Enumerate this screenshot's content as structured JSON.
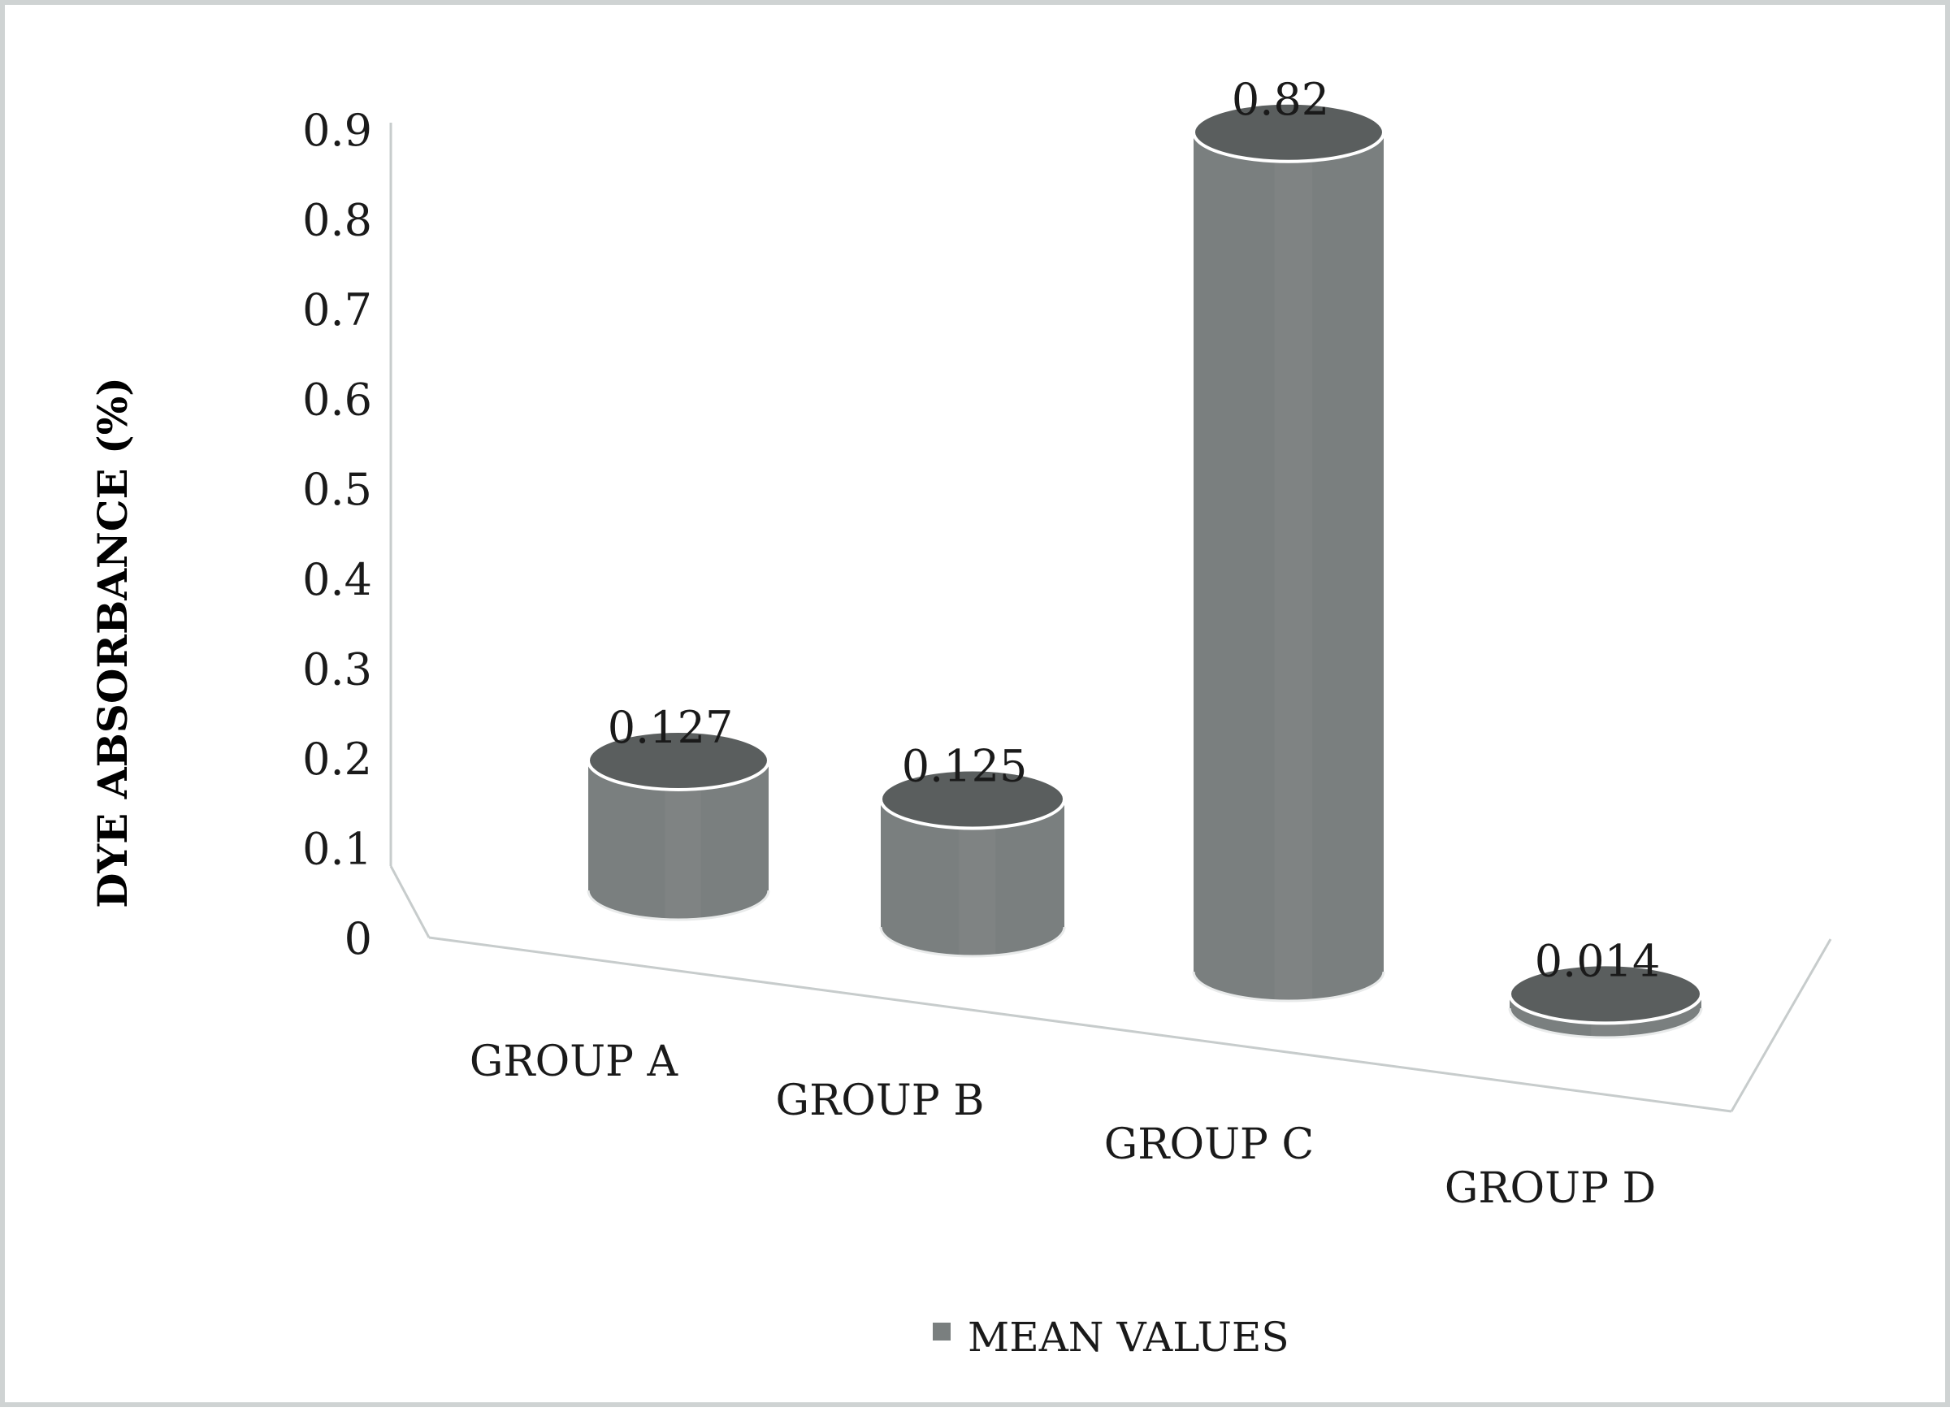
{
  "chart_data": {
    "type": "bar",
    "style": "3d-cylinder",
    "title": "",
    "xlabel": "",
    "ylabel": "DYE ABSORBANCE (%)",
    "categories": [
      "GROUP A",
      "GROUP B",
      "GROUP C",
      "GROUP D"
    ],
    "series": [
      {
        "name": "MEAN VALUES",
        "values": [
          0.127,
          0.125,
          0.82,
          0.014
        ],
        "data_labels": [
          "0.127",
          "0.125",
          "0.82",
          "0.014"
        ],
        "color": "#7a7f7f"
      }
    ],
    "yticks": [
      "0",
      "0.1",
      "0.2",
      "0.3",
      "0.4",
      "0.5",
      "0.6",
      "0.7",
      "0.8",
      "0.9"
    ],
    "ylim": [
      0,
      0.9
    ],
    "grid": false,
    "legend_position": "bottom"
  },
  "colors": {
    "bar_body": "#7a7f7f",
    "bar_top": "#5a5e5e",
    "bar_rim": "#ffffff",
    "axis": "#c7cccc",
    "frame": "#cfd3d3"
  }
}
